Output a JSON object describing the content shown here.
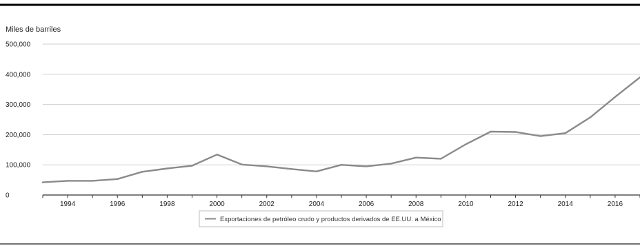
{
  "chart_data": {
    "type": "line",
    "ylabel": "Miles de barriles",
    "ylim": [
      0,
      500000
    ],
    "yticks": [
      0,
      100000,
      200000,
      300000,
      400000,
      500000
    ],
    "ytick_labels": [
      "0",
      "100,000",
      "200,000",
      "300,000",
      "400,000",
      "500,000"
    ],
    "xlim": [
      1993,
      2017
    ],
    "xticks": [
      1994,
      1996,
      1998,
      2000,
      2002,
      2004,
      2006,
      2008,
      2010,
      2012,
      2014,
      2016
    ],
    "xtick_labels": [
      "1994",
      "1996",
      "1998",
      "2000",
      "2002",
      "2004",
      "2006",
      "2008",
      "2010",
      "2012",
      "2014",
      "2016"
    ],
    "grid": "horizontal",
    "legend_position": "bottom-center",
    "series": [
      {
        "name": "Exportaciones de petróleo crudo y productos derivados de EE.UU. a México",
        "color": "#8a8a8a",
        "x": [
          1993,
          1994,
          1995,
          1996,
          1997,
          1998,
          1999,
          2000,
          2001,
          2002,
          2003,
          2004,
          2005,
          2006,
          2007,
          2008,
          2009,
          2010,
          2011,
          2012,
          2013,
          2014,
          2015,
          2016,
          2017
        ],
        "y": [
          42000,
          47000,
          47000,
          53000,
          77000,
          88000,
          97000,
          134000,
          101000,
          95000,
          86000,
          78000,
          100000,
          95000,
          104000,
          124000,
          120000,
          168000,
          210000,
          209000,
          195000,
          205000,
          257000,
          325000,
          390000
        ]
      }
    ]
  }
}
